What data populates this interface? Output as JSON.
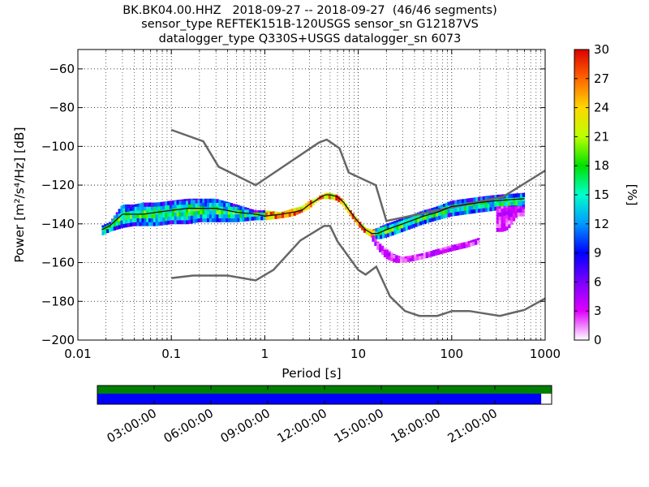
{
  "chart_data": {
    "type": "heatmap",
    "title_lines": [
      "BK.BK04.00.HHZ   2018-09-27 -- 2018-09-27  (46/46 segments)",
      "sensor_type REFTEK151B-120USGS sensor_sn G12187VS",
      "datalogger_type Q330S+USGS datalogger_sn 6073"
    ],
    "xlabel": "Period [s]",
    "ylabel": "Power [m²/s⁴/Hz] [dB]",
    "x_scale": "log",
    "xlim": [
      0.01,
      1000
    ],
    "ylim": [
      -200,
      -50
    ],
    "x_ticks": [
      0.01,
      0.1,
      1,
      10,
      100,
      1000
    ],
    "x_tick_labels": [
      "0.01",
      "0.1",
      "1",
      "10",
      "100",
      "1000"
    ],
    "y_ticks": [
      -200,
      -180,
      -160,
      -140,
      -120,
      -100,
      -80,
      -60
    ],
    "y_tick_labels": [
      "−200",
      "−180",
      "−160",
      "−140",
      "−120",
      "−100",
      "−80",
      "−60"
    ],
    "grid": true,
    "colorbar": {
      "label": "[%]",
      "range": [
        0,
        30
      ],
      "ticks": [
        0,
        3,
        6,
        9,
        12,
        15,
        18,
        21,
        24,
        27,
        30
      ],
      "tick_labels": [
        "0",
        "3",
        "6",
        "9",
        "12",
        "15",
        "18",
        "21",
        "24",
        "27",
        "30"
      ],
      "colormap": [
        "#ffffff",
        "#e000ff",
        "#7a00ff",
        "#0000ff",
        "#0099ff",
        "#00ffcc",
        "#00e000",
        "#bbff00",
        "#ffd700",
        "#ff6600",
        "#dd0000"
      ]
    },
    "noise_models": {
      "color": "#666666",
      "high": {
        "name": "NHNM",
        "x": [
          0.1,
          0.22,
          0.32,
          0.8,
          3.8,
          4.6,
          6.3,
          7.9,
          15.4,
          20,
          354.8,
          1000
        ],
        "y": [
          -91.5,
          -97.4,
          -110.5,
          -120,
          -98,
          -96.5,
          -101,
          -113.5,
          -120,
          -138.5,
          -126,
          -112.5
        ]
      },
      "low": {
        "name": "NLNM",
        "x": [
          0.1,
          0.17,
          0.4,
          0.8,
          1.24,
          2.4,
          4.3,
          5,
          6,
          10,
          12,
          15.6,
          21.9,
          31.6,
          45,
          70,
          101,
          154,
          328,
          600,
          1000
        ],
        "y": [
          -168,
          -166.7,
          -166.7,
          -169.2,
          -163.7,
          -148.6,
          -141.1,
          -141.1,
          -149,
          -163.8,
          -166.2,
          -162.1,
          -177.5,
          -185,
          -187.5,
          -187.5,
          -185,
          -185,
          -187.5,
          -184.4,
          -178.5
        ]
      }
    },
    "psd_bands": [
      {
        "name": "main band",
        "x": [
          0.018,
          0.022,
          0.03,
          0.04,
          0.05,
          0.07,
          0.1,
          0.15,
          0.2,
          0.3,
          0.5,
          0.8,
          1,
          1.5,
          2,
          2.5,
          3,
          3.5,
          4,
          4.5,
          5,
          6,
          7,
          8,
          10,
          12,
          14,
          16,
          20,
          30,
          50,
          70,
          100,
          200,
          300,
          600
        ],
        "top": [
          -141,
          -139,
          -130,
          -130,
          -129,
          -129,
          -128,
          -127,
          -127,
          -127,
          -130,
          -133,
          -133,
          -134,
          -132,
          -131,
          -128,
          -127,
          -125,
          -124,
          -124,
          -125,
          -128,
          -132,
          -138,
          -142,
          -143,
          -142,
          -140,
          -137,
          -133,
          -131,
          -128,
          -126,
          -125,
          -124
        ],
        "bot": [
          -146,
          -144,
          -142,
          -141,
          -141,
          -141,
          -140,
          -140,
          -139,
          -139,
          -139,
          -138,
          -138,
          -137,
          -136,
          -134,
          -132,
          -129,
          -127,
          -127,
          -127,
          -128,
          -131,
          -135,
          -141,
          -145,
          -147,
          -148,
          -147,
          -144,
          -140,
          -138,
          -136,
          -134,
          -133,
          -132
        ]
      },
      {
        "name": "low band",
        "x": [
          14,
          16,
          20,
          25,
          30,
          40,
          50,
          70,
          100,
          150,
          200
        ],
        "top": [
          -145,
          -149,
          -153,
          -156,
          -157,
          -156,
          -155,
          -153,
          -151,
          -149,
          -147
        ],
        "bot": [
          -148,
          -153,
          -158,
          -160,
          -160,
          -159,
          -158,
          -156,
          -154,
          -152,
          -150
        ]
      },
      {
        "name": "side patches",
        "x": [
          300,
          350,
          400,
          500,
          600
        ],
        "top": [
          -131,
          -131,
          -131,
          -131,
          -131
        ],
        "bot": [
          -144,
          -144,
          -143,
          -136,
          -136
        ]
      }
    ],
    "median": {
      "x": [
        0.018,
        0.022,
        0.03,
        0.04,
        0.05,
        0.07,
        0.1,
        0.15,
        0.2,
        0.3,
        0.5,
        0.8,
        1,
        1.5,
        2,
        2.5,
        3,
        3.5,
        4,
        4.5,
        5,
        6,
        7,
        8,
        10,
        12,
        14,
        16,
        20,
        30,
        50,
        70,
        100,
        200,
        300,
        600
      ],
      "y": [
        -143,
        -141,
        -135,
        -135,
        -135,
        -134,
        -133,
        -132,
        -132,
        -132,
        -134,
        -135,
        -136,
        -135,
        -134,
        -133,
        -130,
        -128,
        -126,
        -125,
        -125,
        -126,
        -129,
        -133,
        -139,
        -143,
        -145,
        -145,
        -143,
        -140,
        -136,
        -134,
        -131,
        -129,
        -128,
        -127
      ]
    }
  },
  "timeline": {
    "labels": [
      "03:00:00",
      "06:00:00",
      "09:00:00",
      "12:00:00",
      "15:00:00",
      "18:00:00",
      "21:00:00"
    ],
    "label_hours": [
      3,
      6,
      9,
      12,
      15,
      18,
      21
    ],
    "total_hours": 24,
    "coverage_fraction": 0.977,
    "top_color": "#008000",
    "bottom_color": "#0000ff"
  }
}
